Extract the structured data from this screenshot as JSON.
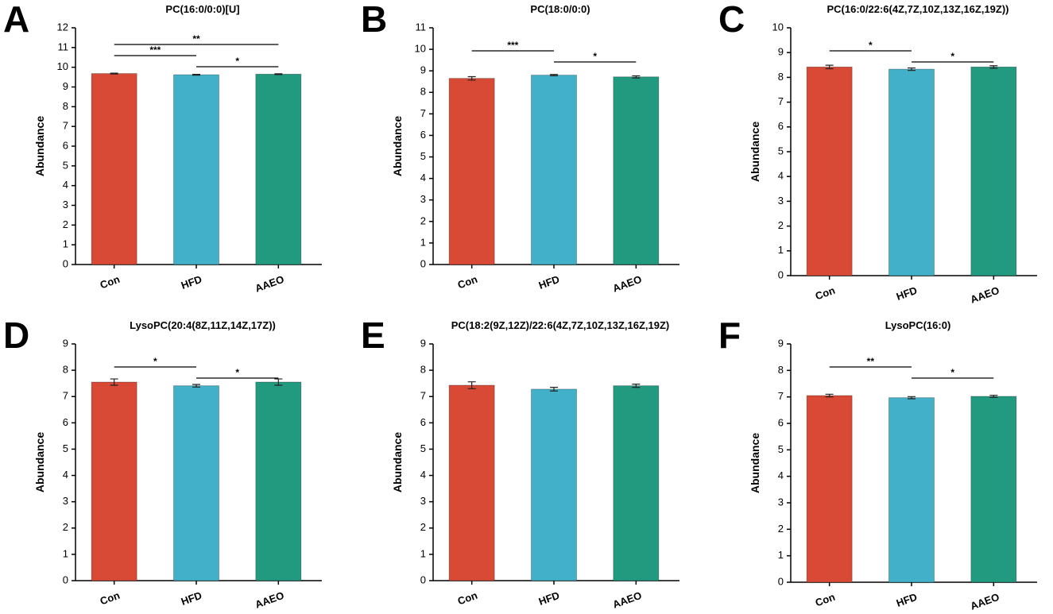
{
  "chart_data": [
    {
      "type": "bar",
      "panel": "A",
      "title": "PC(16:0/0:0)[U]",
      "ylabel": "Abundance",
      "categories": [
        "Con",
        "HFD",
        "AAEO"
      ],
      "values": [
        9.68,
        9.62,
        9.65
      ],
      "errors": [
        0.02,
        0.02,
        0.02
      ],
      "colors": [
        "#d84a35",
        "#42b0c9",
        "#229a80"
      ],
      "ylim": [
        0,
        12
      ],
      "yticks": [
        0,
        1,
        2,
        3,
        4,
        5,
        6,
        7,
        8,
        9,
        10,
        11,
        12
      ],
      "grid": false,
      "brackets": [
        {
          "from": 0,
          "to": 2,
          "label": "**"
        },
        {
          "from": 0,
          "to": 1,
          "label": "***"
        },
        {
          "from": 1,
          "to": 2,
          "label": "*"
        }
      ]
    },
    {
      "type": "bar",
      "panel": "B",
      "title": "PC(18:0/0:0)",
      "ylabel": "Abundance",
      "categories": [
        "Con",
        "HFD",
        "AAEO"
      ],
      "values": [
        8.65,
        8.8,
        8.72
      ],
      "errors": [
        0.08,
        0.03,
        0.05
      ],
      "colors": [
        "#d84a35",
        "#42b0c9",
        "#229a80"
      ],
      "ylim": [
        0,
        11
      ],
      "yticks": [
        0,
        1,
        2,
        3,
        4,
        5,
        6,
        7,
        8,
        9,
        10,
        11
      ],
      "grid": false,
      "brackets": [
        {
          "from": 0,
          "to": 1,
          "label": "***"
        },
        {
          "from": 1,
          "to": 2,
          "label": "*"
        }
      ]
    },
    {
      "type": "bar",
      "panel": "C",
      "title": "PC(16:0/22:6(4Z,7Z,10Z,13Z,16Z,19Z))",
      "ylabel": "Abundance",
      "categories": [
        "Con",
        "HFD",
        "AAEO"
      ],
      "values": [
        8.42,
        8.33,
        8.42
      ],
      "errors": [
        0.07,
        0.05,
        0.05
      ],
      "colors": [
        "#d84a35",
        "#42b0c9",
        "#229a80"
      ],
      "ylim": [
        0,
        10
      ],
      "yticks": [
        0,
        1,
        2,
        3,
        4,
        5,
        6,
        7,
        8,
        9,
        10
      ],
      "grid": false,
      "brackets": [
        {
          "from": 0,
          "to": 1,
          "label": "*"
        },
        {
          "from": 1,
          "to": 2,
          "label": "*"
        }
      ]
    },
    {
      "type": "bar",
      "panel": "D",
      "title": "LysoPC(20:4(8Z,11Z,14Z,17Z))",
      "ylabel": "Abundance",
      "categories": [
        "Con",
        "HFD",
        "AAEO"
      ],
      "values": [
        7.55,
        7.41,
        7.55
      ],
      "errors": [
        0.12,
        0.05,
        0.12
      ],
      "colors": [
        "#d84a35",
        "#42b0c9",
        "#229a80"
      ],
      "ylim": [
        0,
        9
      ],
      "yticks": [
        0,
        1,
        2,
        3,
        4,
        5,
        6,
        7,
        8,
        9
      ],
      "grid": false,
      "brackets": [
        {
          "from": 0,
          "to": 1,
          "label": "*"
        },
        {
          "from": 1,
          "to": 2,
          "label": "*"
        }
      ]
    },
    {
      "type": "bar",
      "panel": "E",
      "title": "PC(18:2(9Z,12Z)/22:6(4Z,7Z,10Z,13Z,16Z,19Z)",
      "ylabel": "Abundance",
      "categories": [
        "Con",
        "HFD",
        "AAEO"
      ],
      "values": [
        7.43,
        7.28,
        7.41
      ],
      "errors": [
        0.13,
        0.07,
        0.06
      ],
      "colors": [
        "#d84a35",
        "#42b0c9",
        "#229a80"
      ],
      "ylim": [
        0,
        9
      ],
      "yticks": [
        0,
        1,
        2,
        3,
        4,
        5,
        6,
        7,
        8,
        9
      ],
      "grid": false,
      "brackets": []
    },
    {
      "type": "bar",
      "panel": "F",
      "title": "LysoPC(16:0)",
      "ylabel": "Abundance",
      "categories": [
        "Con",
        "HFD",
        "AAEO"
      ],
      "values": [
        7.05,
        6.97,
        7.02
      ],
      "errors": [
        0.05,
        0.04,
        0.04
      ],
      "colors": [
        "#d84a35",
        "#42b0c9",
        "#229a80"
      ],
      "ylim": [
        0,
        9
      ],
      "yticks": [
        0,
        1,
        2,
        3,
        4,
        5,
        6,
        7,
        8,
        9
      ],
      "grid": false,
      "brackets": [
        {
          "from": 0,
          "to": 1,
          "label": "**"
        },
        {
          "from": 1,
          "to": 2,
          "label": "*"
        }
      ]
    }
  ]
}
